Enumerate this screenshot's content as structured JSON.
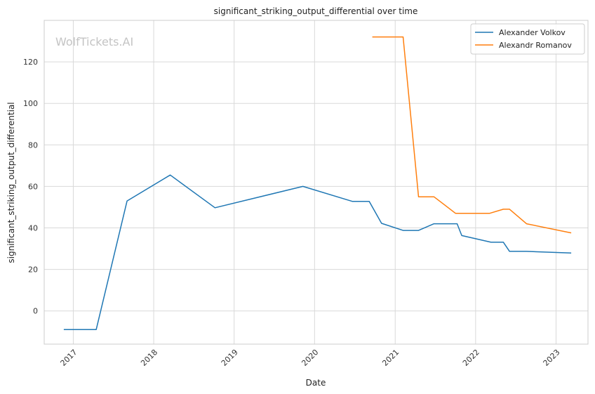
{
  "chart_data": {
    "type": "line",
    "title": "significant_striking_output_differential over time",
    "xlabel": "Date",
    "ylabel": "significant_striking_output_differential",
    "watermark": "WolfTickets.AI",
    "grid": true,
    "legend_position": "top-right",
    "x_type": "date",
    "xlim": [
      "2016-08-22",
      "2023-05-26"
    ],
    "ylim": [
      -16,
      140
    ],
    "x_ticks": [
      {
        "value": "2017-01-01",
        "label": "2017"
      },
      {
        "value": "2018-01-01",
        "label": "2018"
      },
      {
        "value": "2019-01-01",
        "label": "2019"
      },
      {
        "value": "2020-01-01",
        "label": "2020"
      },
      {
        "value": "2021-01-01",
        "label": "2021"
      },
      {
        "value": "2022-01-01",
        "label": "2022"
      },
      {
        "value": "2023-01-01",
        "label": "2023"
      }
    ],
    "y_ticks": [
      {
        "value": 0,
        "label": "0"
      },
      {
        "value": 20,
        "label": "20"
      },
      {
        "value": 40,
        "label": "40"
      },
      {
        "value": 60,
        "label": "60"
      },
      {
        "value": 80,
        "label": "80"
      },
      {
        "value": 100,
        "label": "100"
      },
      {
        "value": 120,
        "label": "120"
      }
    ],
    "series": [
      {
        "name": "Alexander Volkov",
        "color": "#1f77b4",
        "points": [
          {
            "x": "2016-11-19",
            "y": -9
          },
          {
            "x": "2017-04-15",
            "y": -9
          },
          {
            "x": "2017-09-02",
            "y": 53
          },
          {
            "x": "2018-03-17",
            "y": 65.5
          },
          {
            "x": "2018-10-06",
            "y": 49.7
          },
          {
            "x": "2019-11-09",
            "y": 60
          },
          {
            "x": "2020-06-20",
            "y": 52.8
          },
          {
            "x": "2020-09-05",
            "y": 52.8
          },
          {
            "x": "2020-10-31",
            "y": 42.2
          },
          {
            "x": "2021-02-06",
            "y": 38.8
          },
          {
            "x": "2021-04-17",
            "y": 38.8
          },
          {
            "x": "2021-06-26",
            "y": 42
          },
          {
            "x": "2021-10-09",
            "y": 42
          },
          {
            "x": "2021-10-30",
            "y": 36.3
          },
          {
            "x": "2022-03-12",
            "y": 33.1
          },
          {
            "x": "2022-05-07",
            "y": 33.1
          },
          {
            "x": "2022-06-04",
            "y": 28.7
          },
          {
            "x": "2022-08-20",
            "y": 28.7
          },
          {
            "x": "2023-03-11",
            "y": 27.9
          }
        ]
      },
      {
        "name": "Alexandr Romanov",
        "color": "#ff7f0e",
        "points": [
          {
            "x": "2020-09-19",
            "y": 132
          },
          {
            "x": "2021-02-06",
            "y": 132
          },
          {
            "x": "2021-04-17",
            "y": 55
          },
          {
            "x": "2021-06-26",
            "y": 55
          },
          {
            "x": "2021-10-02",
            "y": 47
          },
          {
            "x": "2022-03-05",
            "y": 47
          },
          {
            "x": "2022-05-07",
            "y": 49
          },
          {
            "x": "2022-06-04",
            "y": 49
          },
          {
            "x": "2022-08-20",
            "y": 42
          },
          {
            "x": "2023-03-11",
            "y": 37.6
          }
        ]
      }
    ]
  }
}
